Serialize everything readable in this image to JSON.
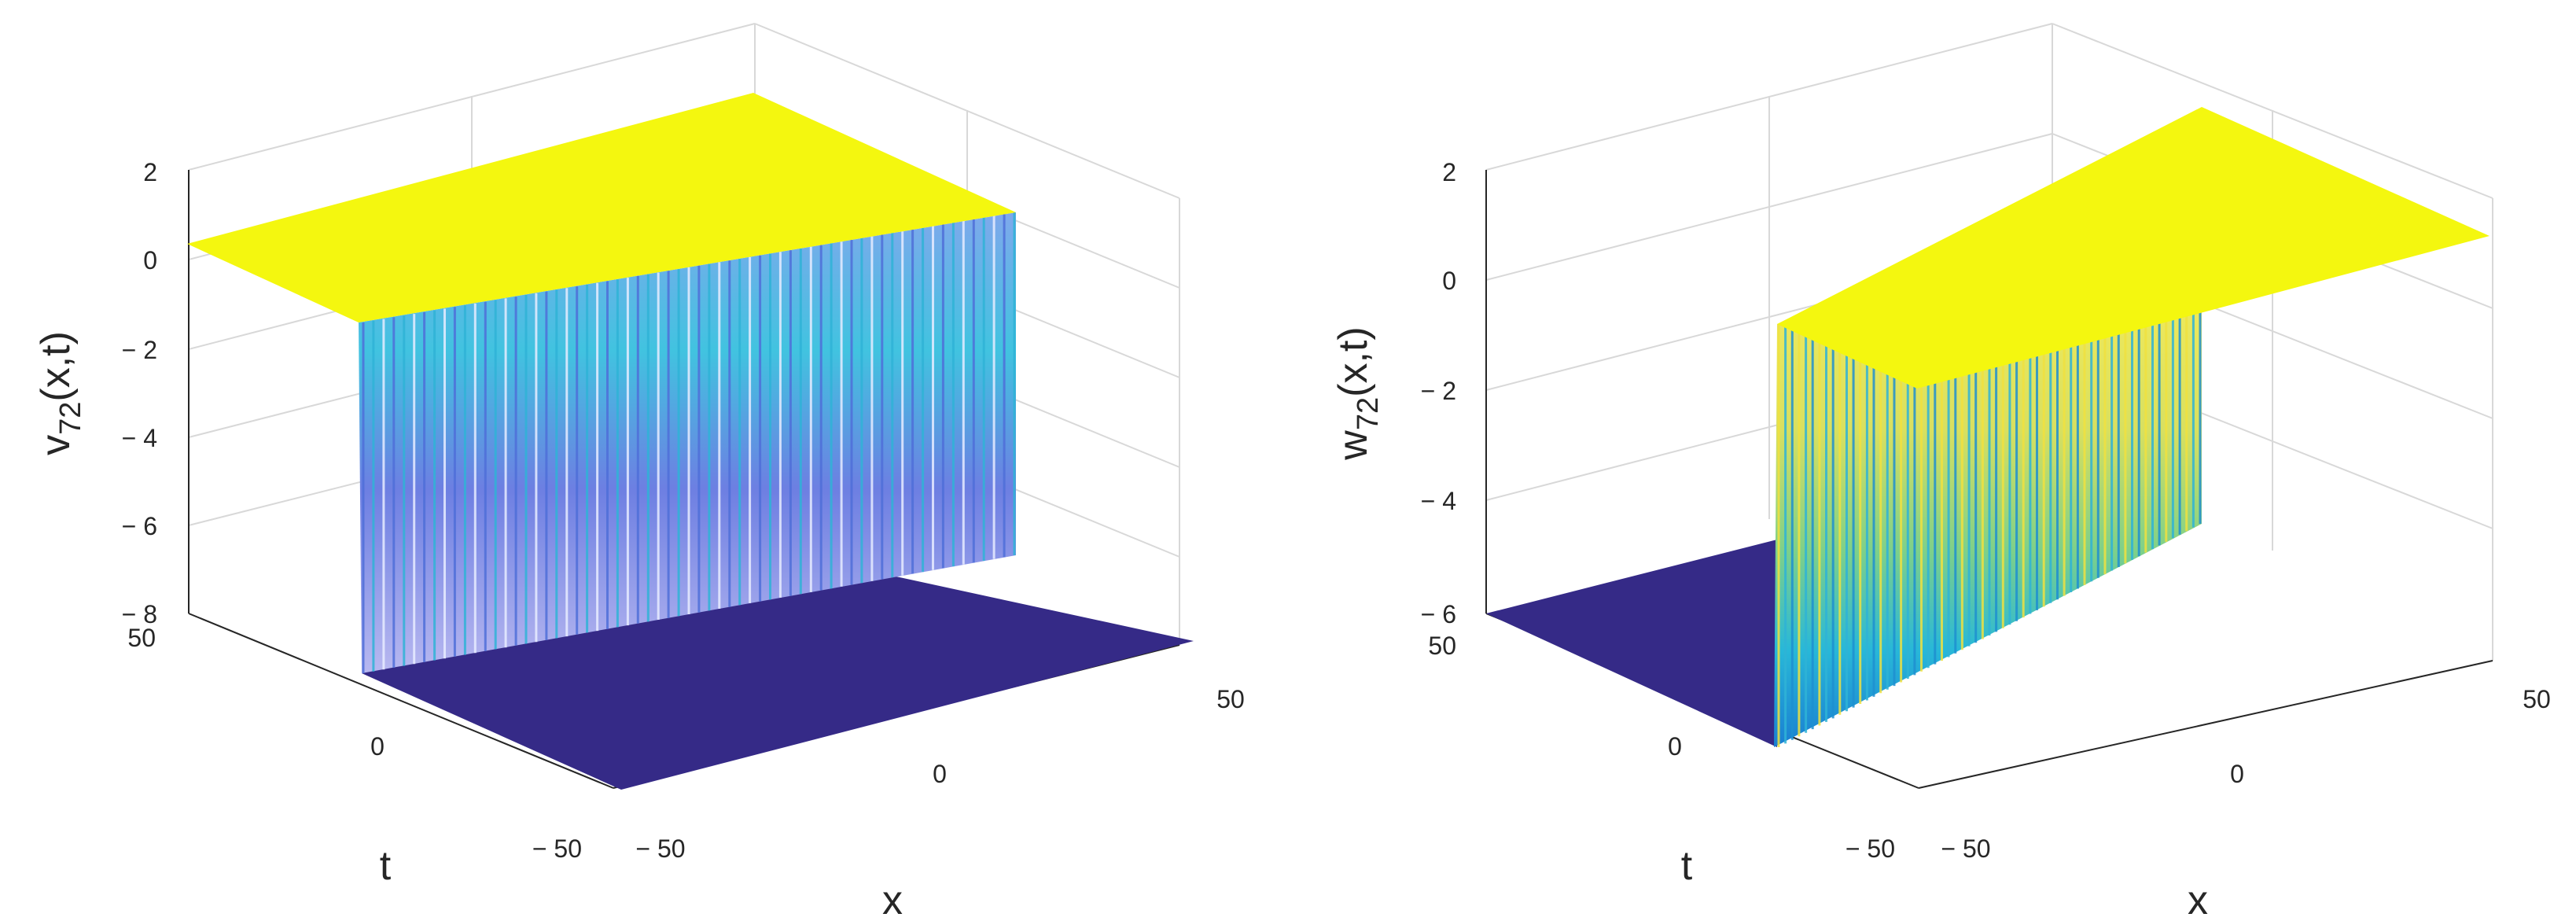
{
  "chart_data": [
    {
      "type": "surface",
      "title": "",
      "zlabel": "v",
      "zlabel_sub": "72",
      "zlabel_suffix": "(x,t)",
      "xlabel": "x",
      "ylabel": "t",
      "xlim": [
        -50,
        50
      ],
      "ylim": [
        -50,
        50
      ],
      "zlim": [
        -8,
        2
      ],
      "x_ticks": [
        "-50",
        "0",
        "50"
      ],
      "y_ticks": [
        "-50",
        "0",
        "50"
      ],
      "z_ticks": [
        "-8",
        "-6",
        "-4",
        "-2",
        "0",
        "2"
      ],
      "upper_level": 0.3,
      "lower_level": -8,
      "front_level": -7,
      "colors": {
        "upper": "#f2f710",
        "lower": "#352a87",
        "stripe_a": "#4f6fd8",
        "stripe_b": "#2fb3d6",
        "stripe_c": "#e8ecff"
      }
    },
    {
      "type": "surface",
      "title": "",
      "zlabel": "w",
      "zlabel_sub": "72",
      "zlabel_suffix": "(x,t)",
      "xlabel": "x",
      "ylabel": "t",
      "xlim": [
        -50,
        50
      ],
      "ylim": [
        -50,
        50
      ],
      "zlim": [
        -6,
        2
      ],
      "x_ticks": [
        "-50",
        "0",
        "50"
      ],
      "y_ticks": [
        "-50",
        "0",
        "50"
      ],
      "z_ticks": [
        "-6",
        "-4",
        "-2",
        "0",
        "2"
      ],
      "upper_level": 0.8,
      "lower_level": -6,
      "colors": {
        "upper": "#f2f710",
        "lower": "#352a87",
        "stripe_a": "#f0e040",
        "stripe_b": "#2fb3d6",
        "stripe_c": "#1f8fd0"
      }
    }
  ]
}
